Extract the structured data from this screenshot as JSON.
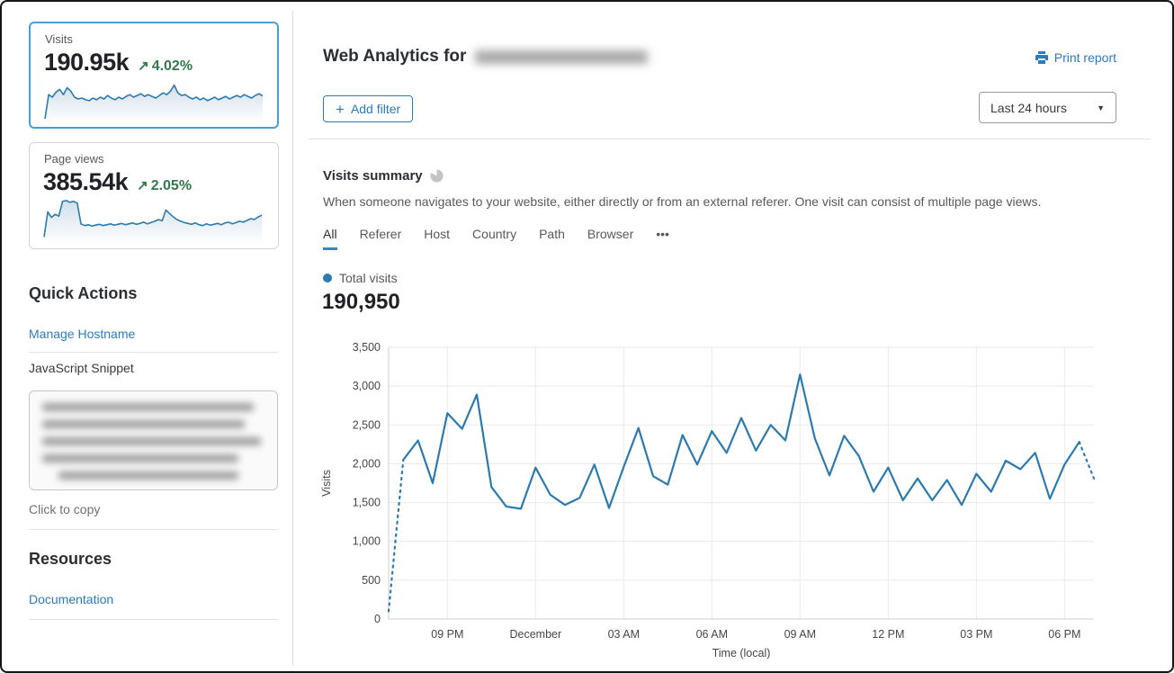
{
  "colors": {
    "accent_blue": "#2c7bbf",
    "chart_blue": "#2b7ab0",
    "green": "#337a4d",
    "selected_border": "#4a9fd5"
  },
  "sidebar": {
    "metric_cards": [
      {
        "label": "Visits",
        "value": "190.95k",
        "change_arrow": "↗",
        "change": "4.02%",
        "selected": true,
        "sparkline": [
          2,
          58,
          52,
          64,
          70,
          58,
          74,
          66,
          52,
          48,
          50,
          46,
          44,
          50,
          46,
          52,
          48,
          56,
          50,
          46,
          52,
          48,
          54,
          58,
          52,
          56,
          60,
          54,
          58,
          54,
          50,
          56,
          62,
          58,
          66,
          80,
          62,
          56,
          58,
          52,
          48,
          52,
          46,
          50,
          44,
          48,
          52,
          46,
          50,
          54,
          48,
          52,
          56,
          52,
          58,
          54,
          50,
          56,
          60,
          55
        ]
      },
      {
        "label": "Page views",
        "value": "385.54k",
        "change_arrow": "↗",
        "change": "2.05%",
        "selected": false,
        "sparkline": [
          10,
          68,
          55,
          62,
          58,
          92,
          94,
          90,
          92,
          88,
          40,
          36,
          38,
          35,
          37,
          39,
          36,
          38,
          40,
          37,
          39,
          41,
          38,
          40,
          42,
          39,
          41,
          44,
          40,
          43,
          46,
          50,
          47,
          72,
          64,
          56,
          50,
          46,
          43,
          41,
          39,
          42,
          38,
          36,
          40,
          37,
          39,
          41,
          38,
          42,
          44,
          40,
          43,
          46,
          44,
          48,
          52,
          50,
          56,
          60
        ]
      }
    ],
    "quick_actions": {
      "title": "Quick Actions",
      "manage_hostname": "Manage Hostname",
      "snippet_label": "JavaScript Snippet",
      "copy_hint": "Click to copy"
    },
    "resources": {
      "title": "Resources",
      "documentation": "Documentation"
    }
  },
  "header": {
    "title_prefix": "Web Analytics for",
    "print_label": "Print report",
    "plus": "+",
    "add_filter": "Add filter",
    "time_range": "Last 24 hours"
  },
  "summary": {
    "title": "Visits summary",
    "description": "When someone navigates to your website, either directly or from an external referer. One visit can consist of multiple page views.",
    "tabs": [
      "All",
      "Referer",
      "Host",
      "Country",
      "Path",
      "Browser",
      "•••"
    ],
    "active_tab": "All",
    "legend_label": "Total visits",
    "total_value": "190,950"
  },
  "chart_data": {
    "type": "line",
    "title": "Total visits",
    "xlabel": "Time (local)",
    "ylabel": "Visits",
    "ylim": [
      0,
      3500
    ],
    "ytick_step": 500,
    "y_tick_labels": [
      "0",
      "500",
      "1,000",
      "1,500",
      "2,000",
      "2,500",
      "3,000",
      "3,500"
    ],
    "grid": true,
    "legend_position": "top-left",
    "x_ticks": [
      {
        "i": 4,
        "label": "09 PM"
      },
      {
        "i": 10,
        "label": "December"
      },
      {
        "i": 16,
        "label": "03 AM"
      },
      {
        "i": 22,
        "label": "06 AM"
      },
      {
        "i": 28,
        "label": "09 AM"
      },
      {
        "i": 34,
        "label": "12 PM"
      },
      {
        "i": 40,
        "label": "03 PM"
      },
      {
        "i": 46,
        "label": "06 PM"
      }
    ],
    "series": [
      {
        "name": "Total visits",
        "color": "#2b7ab0",
        "values": [
          100,
          2050,
          2300,
          1750,
          2650,
          2450,
          2890,
          1700,
          1450,
          1420,
          1950,
          1600,
          1470,
          1560,
          1990,
          1430,
          1960,
          2460,
          1840,
          1730,
          2370,
          1990,
          2420,
          2140,
          2590,
          2170,
          2500,
          2300,
          3150,
          2330,
          1850,
          2360,
          2100,
          1640,
          1950,
          1530,
          1810,
          1530,
          1790,
          1470,
          1870,
          1640,
          2040,
          1930,
          2140,
          1550,
          1990,
          2280,
          1810
        ],
        "dashed_segments": [
          [
            0,
            1
          ],
          [
            47,
            48
          ]
        ]
      }
    ]
  }
}
